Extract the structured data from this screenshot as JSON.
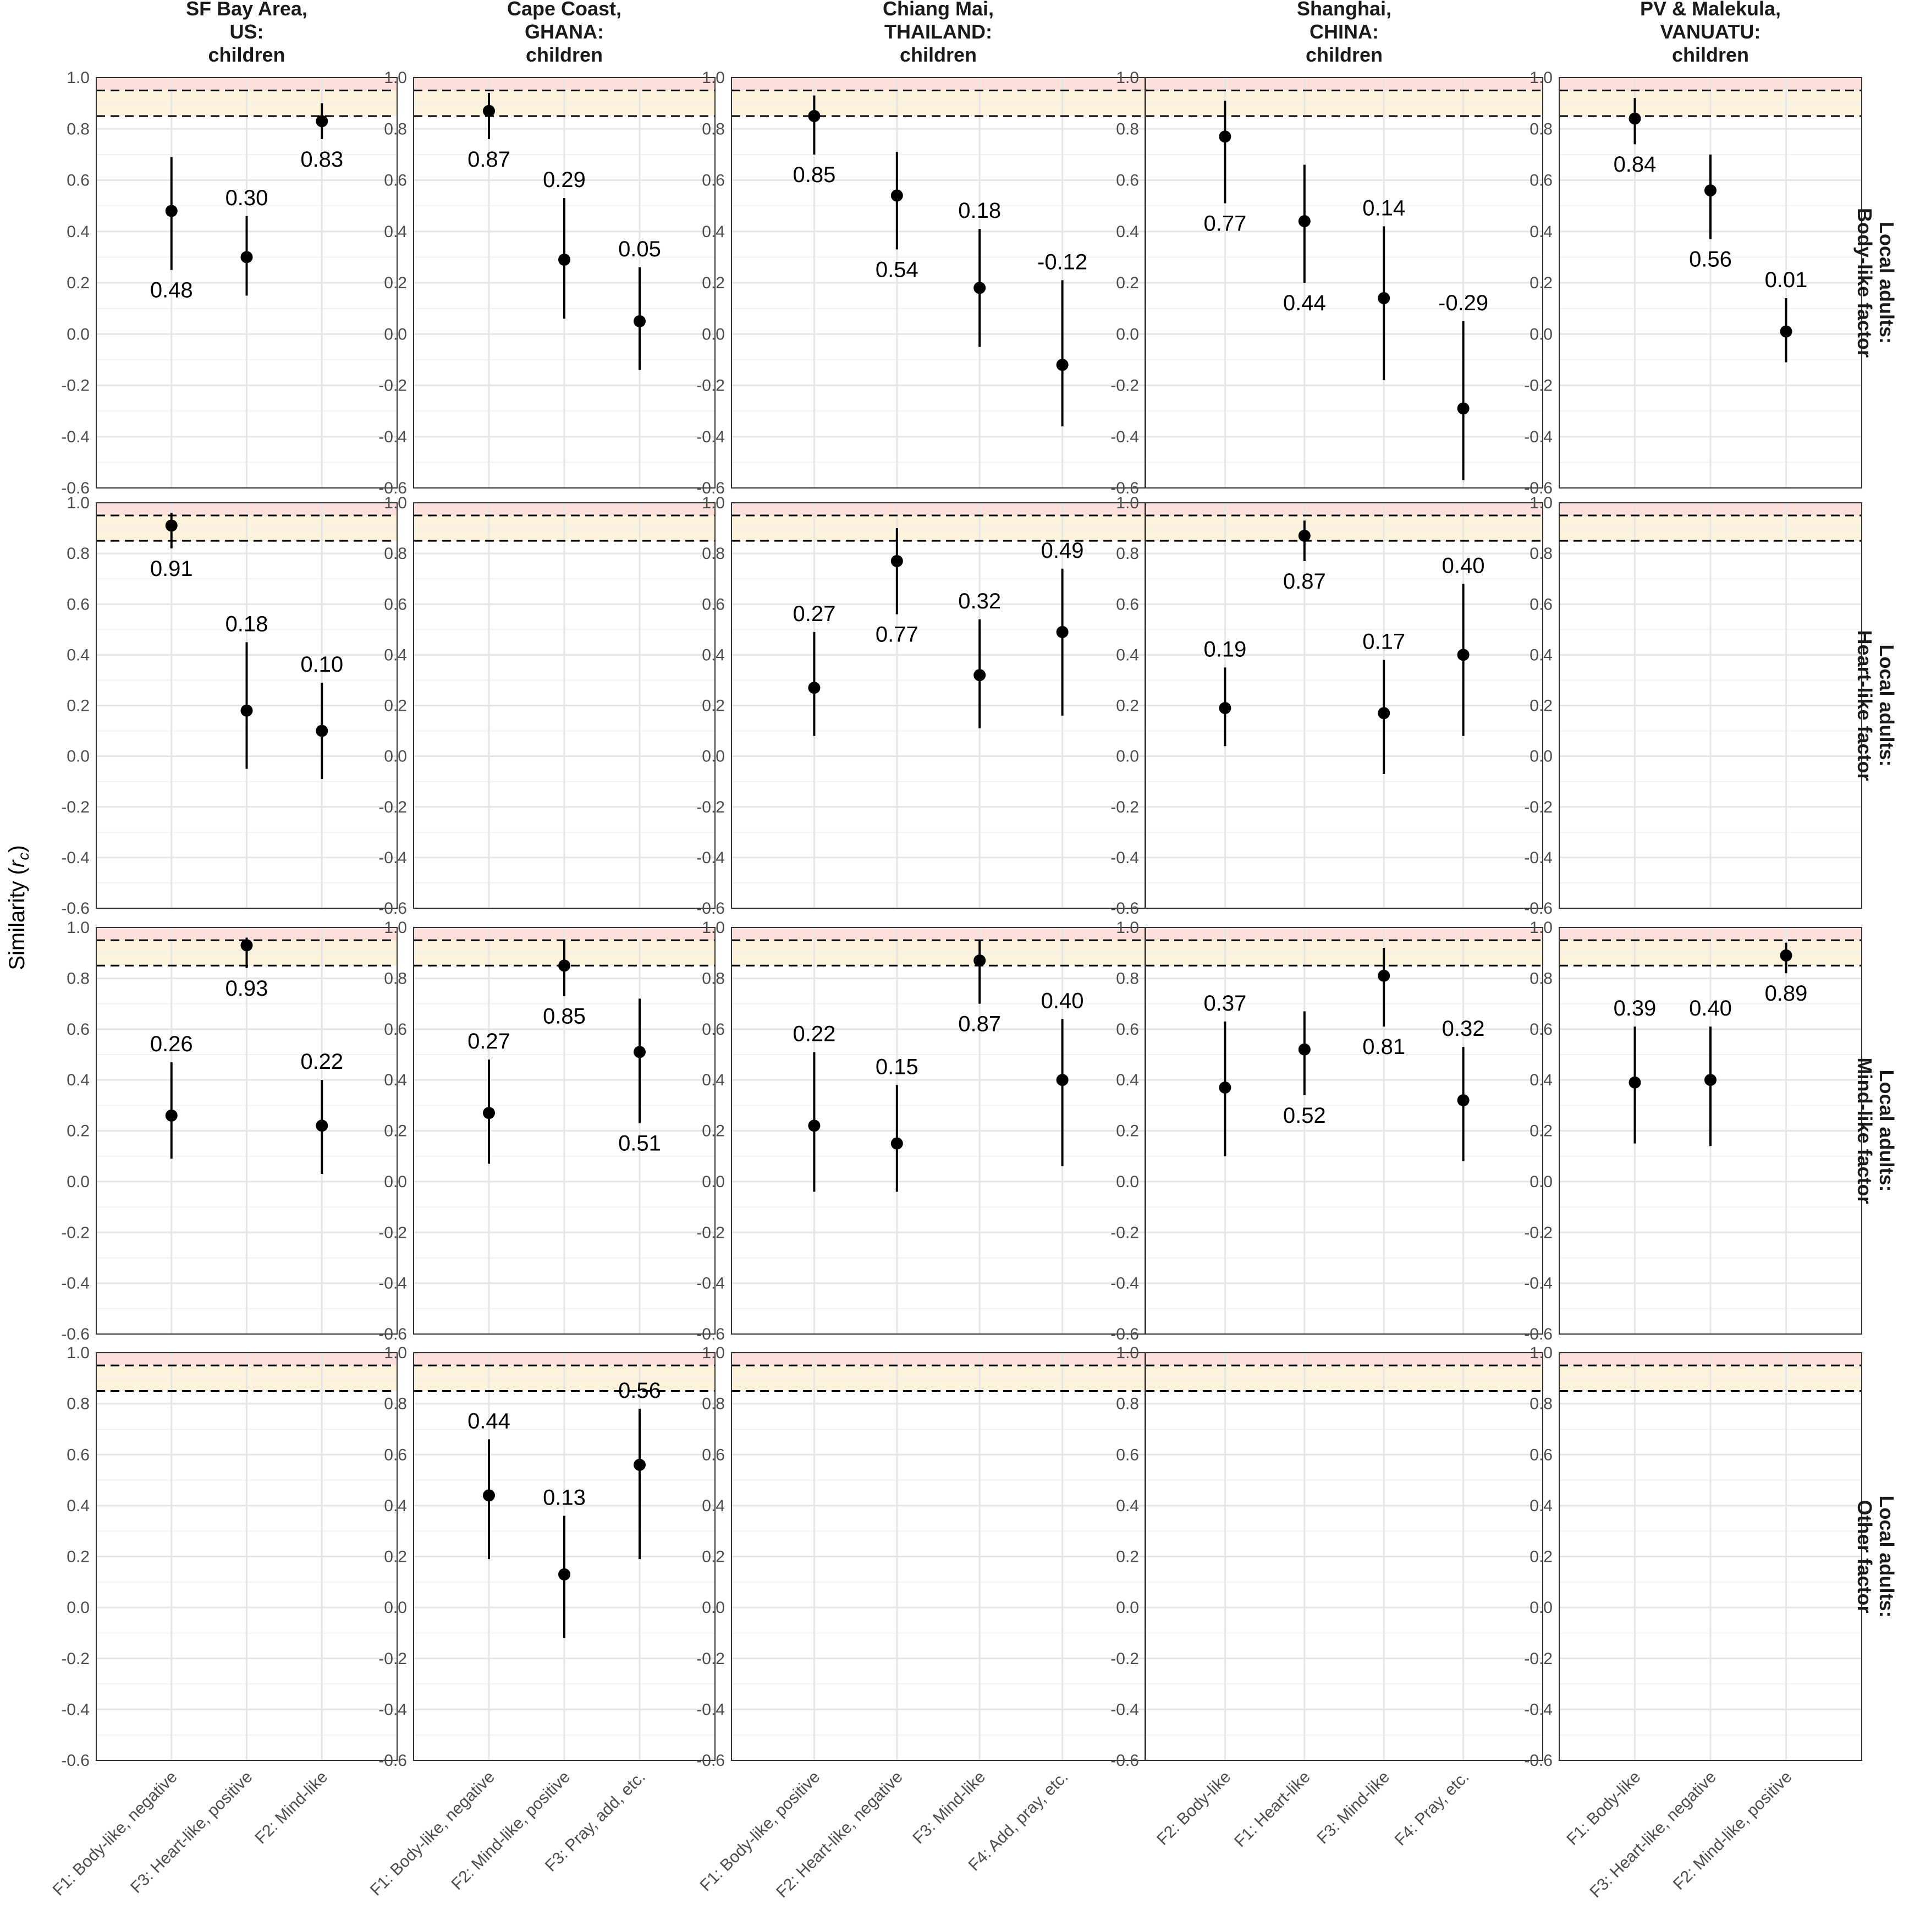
{
  "chart_data": {
    "type": "scatter",
    "subtype": "faceted point-range (dot with vertical interval)",
    "ylabel": "Similarity",
    "ylabel_symbol": "r",
    "ylabel_subscript": "c",
    "ylim": [
      -0.6,
      1.0
    ],
    "yticks": [
      "1.0",
      "0.8",
      "0.6",
      "0.4",
      "0.2",
      "0.0",
      "-0.2",
      "-0.4",
      "-0.6"
    ],
    "bands": [
      {
        "from": 0.95,
        "to": 1.0,
        "color": "#fde0dc"
      },
      {
        "from": 0.85,
        "to": 0.95,
        "color": "#fdf3dc"
      }
    ],
    "reference_lines": [
      0.95,
      0.85
    ],
    "columns": [
      {
        "title_lines": [
          "SF Bay Area,",
          "US:",
          "children"
        ],
        "x_categories": [
          "F1: Body-like, negative",
          "F3: Heart-like, positive",
          "F2: Mind-like"
        ]
      },
      {
        "title_lines": [
          "Cape Coast,",
          "GHANA:",
          "children"
        ],
        "x_categories": [
          "F1: Body-like, negative",
          "F2: Mind-like, positive",
          "F3: Pray, add, etc."
        ]
      },
      {
        "title_lines": [
          "Chiang Mai,",
          "THAILAND:",
          "children"
        ],
        "x_categories": [
          "F1: Body-like, positive",
          "F2: Heart-like, negative",
          "F3: Mind-like",
          "F4: Add, pray, etc."
        ]
      },
      {
        "title_lines": [
          "Shanghai,",
          "CHINA:",
          "children"
        ],
        "x_categories": [
          "F2: Body-like",
          "F1: Heart-like",
          "F3: Mind-like",
          "F4: Pray, etc."
        ]
      },
      {
        "title_lines": [
          "PV & Malekula,",
          "VANUATU:",
          "children"
        ],
        "x_categories": [
          "F1: Body-like",
          "F3: Heart-like, negative",
          "F2: Mind-like, positive"
        ]
      }
    ],
    "rows": [
      {
        "title_lines": [
          "Local adults:",
          "Body-like factor"
        ]
      },
      {
        "title_lines": [
          "Local adults:",
          "Heart-like factor"
        ]
      },
      {
        "title_lines": [
          "Local adults:",
          "Mind-like factor"
        ]
      },
      {
        "title_lines": [
          "Local adults:",
          "Other factor"
        ]
      }
    ],
    "panels": [
      {
        "row": 0,
        "col": 0,
        "points": [
          {
            "x": 0,
            "y": 0.48,
            "lo": 0.25,
            "hi": 0.69,
            "label": "0.48",
            "label_pos": "below"
          },
          {
            "x": 1,
            "y": 0.3,
            "lo": 0.15,
            "hi": 0.46,
            "label": "0.30",
            "label_pos": "above"
          },
          {
            "x": 2,
            "y": 0.83,
            "lo": 0.76,
            "hi": 0.9,
            "label": "0.83",
            "label_pos": "below"
          }
        ]
      },
      {
        "row": 0,
        "col": 1,
        "points": [
          {
            "x": 0,
            "y": 0.87,
            "lo": 0.76,
            "hi": 0.94,
            "label": "0.87",
            "label_pos": "below"
          },
          {
            "x": 1,
            "y": 0.29,
            "lo": 0.06,
            "hi": 0.53,
            "label": "0.29",
            "label_pos": "above"
          },
          {
            "x": 2,
            "y": 0.05,
            "lo": -0.14,
            "hi": 0.26,
            "label": "0.05",
            "label_pos": "above"
          }
        ]
      },
      {
        "row": 0,
        "col": 2,
        "points": [
          {
            "x": 0,
            "y": 0.85,
            "lo": 0.7,
            "hi": 0.93,
            "label": "0.85",
            "label_pos": "below"
          },
          {
            "x": 1,
            "y": 0.54,
            "lo": 0.33,
            "hi": 0.71,
            "label": "0.54",
            "label_pos": "below"
          },
          {
            "x": 2,
            "y": 0.18,
            "lo": -0.05,
            "hi": 0.41,
            "label": "0.18",
            "label_pos": "above"
          },
          {
            "x": 3,
            "y": -0.12,
            "lo": -0.36,
            "hi": 0.21,
            "label": "-0.12",
            "label_pos": "above"
          }
        ]
      },
      {
        "row": 0,
        "col": 3,
        "points": [
          {
            "x": 0,
            "y": 0.77,
            "lo": 0.51,
            "hi": 0.91,
            "label": "0.77",
            "label_pos": "below"
          },
          {
            "x": 1,
            "y": 0.44,
            "lo": 0.2,
            "hi": 0.66,
            "label": "0.44",
            "label_pos": "below"
          },
          {
            "x": 2,
            "y": 0.14,
            "lo": -0.18,
            "hi": 0.42,
            "label": "0.14",
            "label_pos": "above"
          },
          {
            "x": 3,
            "y": -0.29,
            "lo": -0.57,
            "hi": 0.05,
            "label": "-0.29",
            "label_pos": "above"
          }
        ]
      },
      {
        "row": 0,
        "col": 4,
        "points": [
          {
            "x": 0,
            "y": 0.84,
            "lo": 0.74,
            "hi": 0.92,
            "label": "0.84",
            "label_pos": "below"
          },
          {
            "x": 1,
            "y": 0.56,
            "lo": 0.37,
            "hi": 0.7,
            "label": "0.56",
            "label_pos": "below"
          },
          {
            "x": 2,
            "y": 0.01,
            "lo": -0.11,
            "hi": 0.14,
            "label": "0.01",
            "label_pos": "above"
          }
        ]
      },
      {
        "row": 1,
        "col": 0,
        "points": [
          {
            "x": 0,
            "y": 0.91,
            "lo": 0.82,
            "hi": 0.96,
            "label": "0.91",
            "label_pos": "below"
          },
          {
            "x": 1,
            "y": 0.18,
            "lo": -0.05,
            "hi": 0.45,
            "label": "0.18",
            "label_pos": "above"
          },
          {
            "x": 2,
            "y": 0.1,
            "lo": -0.09,
            "hi": 0.29,
            "label": "0.10",
            "label_pos": "above"
          }
        ]
      },
      {
        "row": 1,
        "col": 1,
        "points": []
      },
      {
        "row": 1,
        "col": 2,
        "points": [
          {
            "x": 0,
            "y": 0.27,
            "lo": 0.08,
            "hi": 0.49,
            "label": "0.27",
            "label_pos": "above"
          },
          {
            "x": 1,
            "y": 0.77,
            "lo": 0.56,
            "hi": 0.9,
            "label": "0.77",
            "label_pos": "below"
          },
          {
            "x": 2,
            "y": 0.32,
            "lo": 0.11,
            "hi": 0.54,
            "label": "0.32",
            "label_pos": "above"
          },
          {
            "x": 3,
            "y": 0.49,
            "lo": 0.16,
            "hi": 0.74,
            "label": "0.49",
            "label_pos": "above"
          }
        ]
      },
      {
        "row": 1,
        "col": 3,
        "points": [
          {
            "x": 0,
            "y": 0.19,
            "lo": 0.04,
            "hi": 0.35,
            "label": "0.19",
            "label_pos": "above"
          },
          {
            "x": 1,
            "y": 0.87,
            "lo": 0.77,
            "hi": 0.93,
            "label": "0.87",
            "label_pos": "below"
          },
          {
            "x": 2,
            "y": 0.17,
            "lo": -0.07,
            "hi": 0.38,
            "label": "0.17",
            "label_pos": "above"
          },
          {
            "x": 3,
            "y": 0.4,
            "lo": 0.08,
            "hi": 0.68,
            "label": "0.40",
            "label_pos": "above"
          }
        ]
      },
      {
        "row": 1,
        "col": 4,
        "points": []
      },
      {
        "row": 2,
        "col": 0,
        "points": [
          {
            "x": 0,
            "y": 0.26,
            "lo": 0.09,
            "hi": 0.47,
            "label": "0.26",
            "label_pos": "above"
          },
          {
            "x": 1,
            "y": 0.93,
            "lo": 0.84,
            "hi": 0.96,
            "label": "0.93",
            "label_pos": "below"
          },
          {
            "x": 2,
            "y": 0.22,
            "lo": 0.03,
            "hi": 0.4,
            "label": "0.22",
            "label_pos": "above"
          }
        ]
      },
      {
        "row": 2,
        "col": 1,
        "points": [
          {
            "x": 0,
            "y": 0.27,
            "lo": 0.07,
            "hi": 0.48,
            "label": "0.27",
            "label_pos": "above"
          },
          {
            "x": 1,
            "y": 0.85,
            "lo": 0.73,
            "hi": 0.95,
            "label": "0.85",
            "label_pos": "below"
          },
          {
            "x": 2,
            "y": 0.51,
            "lo": 0.23,
            "hi": 0.72,
            "label": "0.51",
            "label_pos": "below"
          }
        ]
      },
      {
        "row": 2,
        "col": 2,
        "points": [
          {
            "x": 0,
            "y": 0.22,
            "lo": -0.04,
            "hi": 0.51,
            "label": "0.22",
            "label_pos": "above"
          },
          {
            "x": 1,
            "y": 0.15,
            "lo": -0.04,
            "hi": 0.38,
            "label": "0.15",
            "label_pos": "above"
          },
          {
            "x": 2,
            "y": 0.87,
            "lo": 0.7,
            "hi": 0.95,
            "label": "0.87",
            "label_pos": "below"
          },
          {
            "x": 3,
            "y": 0.4,
            "lo": 0.06,
            "hi": 0.64,
            "label": "0.40",
            "label_pos": "above"
          }
        ]
      },
      {
        "row": 2,
        "col": 3,
        "points": [
          {
            "x": 0,
            "y": 0.37,
            "lo": 0.1,
            "hi": 0.63,
            "label": "0.37",
            "label_pos": "above"
          },
          {
            "x": 1,
            "y": 0.52,
            "lo": 0.34,
            "hi": 0.67,
            "label": "0.52",
            "label_pos": "below"
          },
          {
            "x": 2,
            "y": 0.81,
            "lo": 0.61,
            "hi": 0.92,
            "label": "0.81",
            "label_pos": "below"
          },
          {
            "x": 3,
            "y": 0.32,
            "lo": 0.08,
            "hi": 0.53,
            "label": "0.32",
            "label_pos": "above"
          }
        ]
      },
      {
        "row": 2,
        "col": 4,
        "points": [
          {
            "x": 0,
            "y": 0.39,
            "lo": 0.15,
            "hi": 0.61,
            "label": "0.39",
            "label_pos": "above"
          },
          {
            "x": 1,
            "y": 0.4,
            "lo": 0.14,
            "hi": 0.61,
            "label": "0.40",
            "label_pos": "above"
          },
          {
            "x": 2,
            "y": 0.89,
            "lo": 0.82,
            "hi": 0.94,
            "label": "0.89",
            "label_pos": "below"
          }
        ]
      },
      {
        "row": 3,
        "col": 0,
        "points": []
      },
      {
        "row": 3,
        "col": 1,
        "points": [
          {
            "x": 0,
            "y": 0.44,
            "lo": 0.19,
            "hi": 0.66,
            "label": "0.44",
            "label_pos": "above"
          },
          {
            "x": 1,
            "y": 0.13,
            "lo": -0.12,
            "hi": 0.36,
            "label": "0.13",
            "label_pos": "above"
          },
          {
            "x": 2,
            "y": 0.56,
            "lo": 0.19,
            "hi": 0.78,
            "label": "0.56",
            "label_pos": "above"
          }
        ]
      },
      {
        "row": 3,
        "col": 2,
        "points": []
      },
      {
        "row": 3,
        "col": 3,
        "points": []
      },
      {
        "row": 3,
        "col": 4,
        "points": []
      }
    ]
  }
}
